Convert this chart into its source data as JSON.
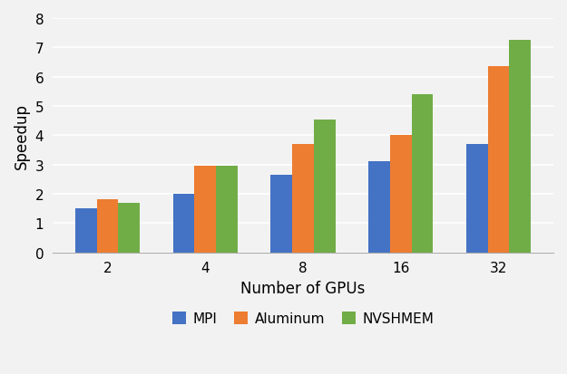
{
  "categories": [
    2,
    4,
    8,
    16,
    32
  ],
  "series": {
    "MPI": [
      1.5,
      2.0,
      2.65,
      3.1,
      3.7
    ],
    "Aluminum": [
      1.8,
      2.95,
      3.7,
      4.0,
      6.35
    ],
    "NVSHMEM": [
      1.7,
      2.95,
      4.55,
      5.4,
      7.25
    ]
  },
  "colors": {
    "MPI": "#4472C4",
    "Aluminum": "#ED7D31",
    "NVSHMEM": "#70AD47"
  },
  "xlabel": "Number of GPUs",
  "ylabel": "Speedup",
  "ylim": [
    0,
    8
  ],
  "yticks": [
    0,
    1,
    2,
    3,
    4,
    5,
    6,
    7,
    8
  ],
  "bar_width": 0.22,
  "background_color": "#F2F2F2",
  "plot_bg_color": "#F2F2F2",
  "grid_color": "#FFFFFF",
  "legend_labels": [
    "MPI",
    "Aluminum",
    "NVSHMEM"
  ],
  "xlabel_fontsize": 12,
  "ylabel_fontsize": 12,
  "tick_fontsize": 11,
  "legend_fontsize": 11
}
